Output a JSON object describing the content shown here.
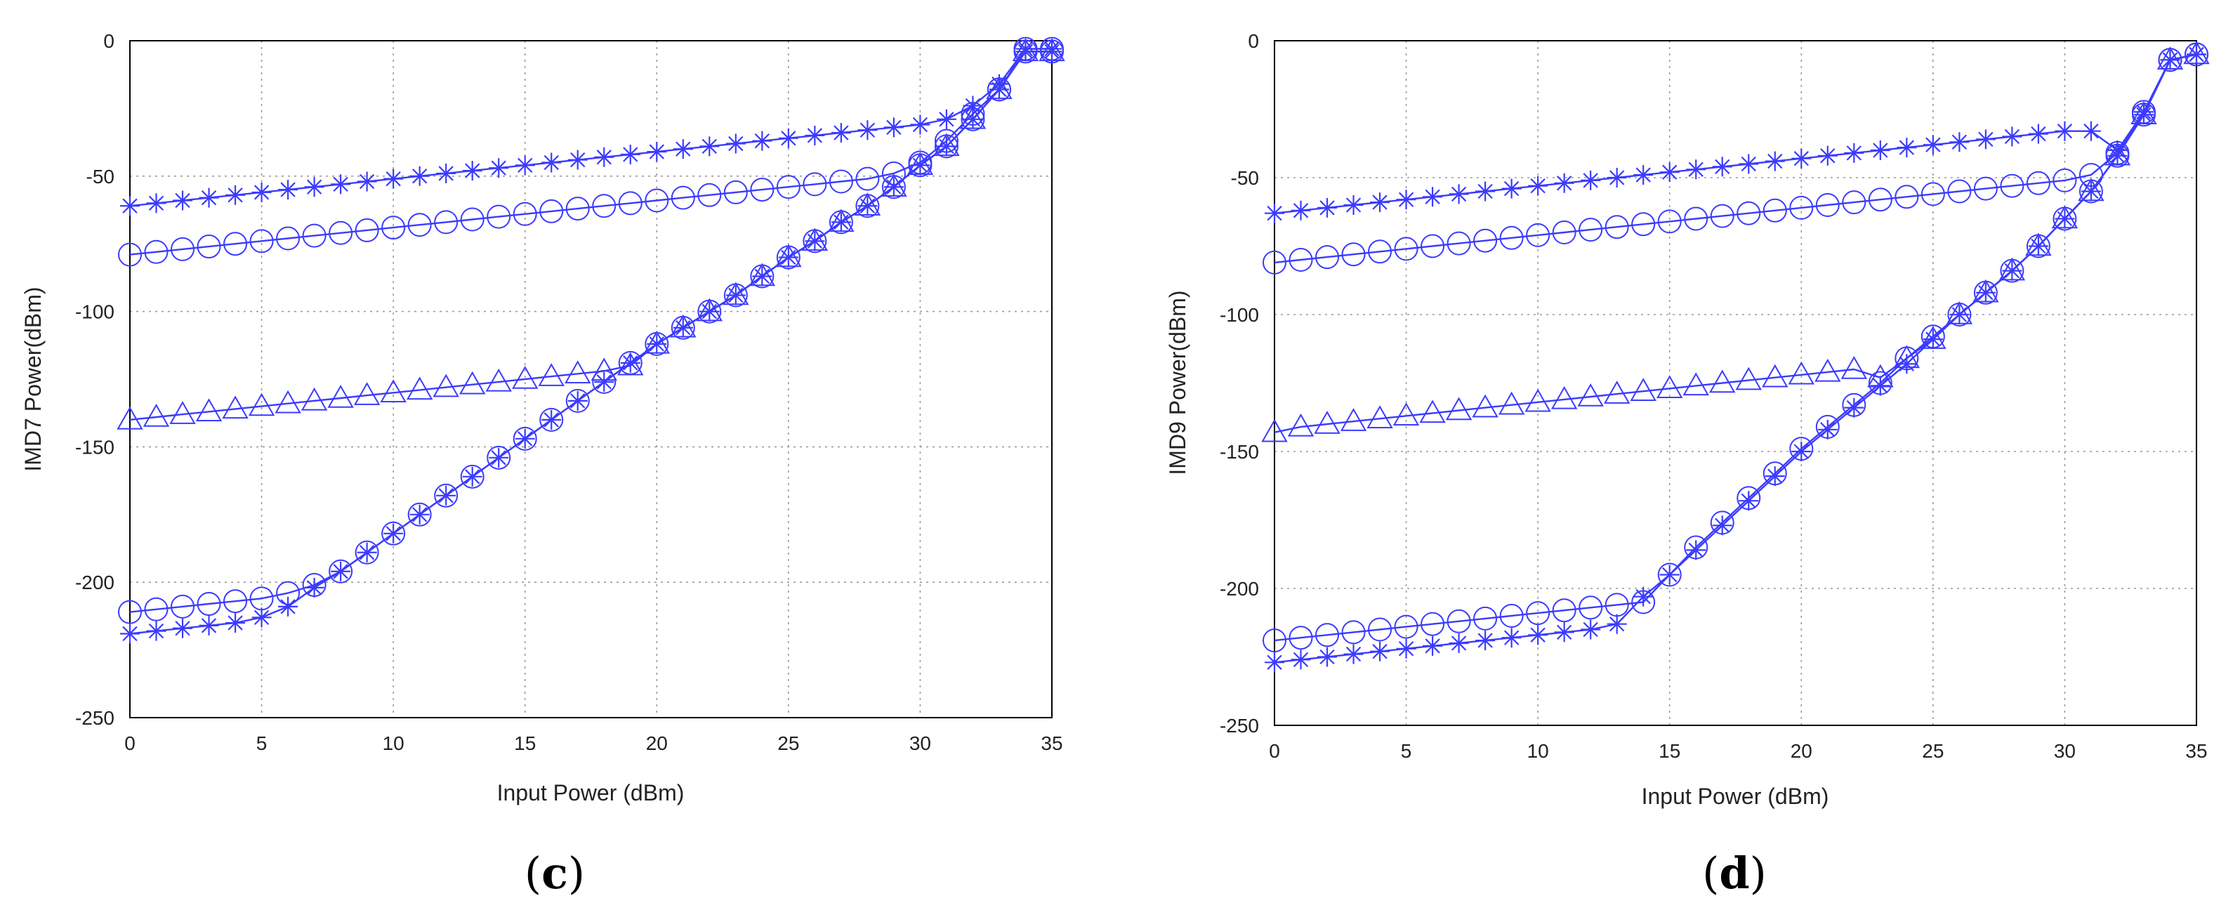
{
  "chart_data": [
    {
      "type": "line",
      "caption": {
        "open": "(",
        "letter": "c",
        "close": ")"
      },
      "xlabel": "Input Power (dBm)",
      "ylabel": "IMD7 Power(dBm)",
      "xlim": [
        0,
        35
      ],
      "ylim": [
        -250,
        0
      ],
      "xticks": [
        0,
        5,
        10,
        15,
        20,
        25,
        30,
        35
      ],
      "yticks": [
        0,
        -50,
        -100,
        -150,
        -200,
        -250
      ],
      "grid": true,
      "color": "#3b3bff",
      "series": [
        {
          "name": "star-upper",
          "marker": "star",
          "x": [
            0,
            1,
            2,
            3,
            4,
            5,
            6,
            7,
            8,
            9,
            10,
            11,
            12,
            13,
            14,
            15,
            16,
            17,
            18,
            19,
            20,
            21,
            22,
            23,
            24,
            25,
            26,
            27,
            28,
            29,
            30,
            31,
            32,
            33,
            34,
            35
          ],
          "y": [
            -61,
            -60,
            -59,
            -58,
            -57,
            -56,
            -55,
            -54,
            -53,
            -52,
            -51,
            -50,
            -49,
            -48,
            -47,
            -46,
            -45,
            -44,
            -43,
            -42,
            -41,
            -40,
            -39,
            -38,
            -37,
            -36,
            -35,
            -34,
            -33,
            -32,
            -31,
            -29,
            -24,
            -16,
            -3,
            -3
          ]
        },
        {
          "name": "circle-upper",
          "marker": "circle",
          "x": [
            0,
            1,
            2,
            3,
            4,
            5,
            6,
            7,
            8,
            9,
            10,
            11,
            12,
            13,
            14,
            15,
            16,
            17,
            18,
            19,
            20,
            21,
            22,
            23,
            24,
            25,
            26,
            27,
            28,
            29,
            30,
            31,
            32,
            33,
            34,
            35
          ],
          "y": [
            -79,
            -78,
            -77,
            -76,
            -75,
            -74,
            -73,
            -72,
            -71,
            -70,
            -69,
            -68,
            -67,
            -66,
            -65,
            -64,
            -63,
            -62,
            -61,
            -60,
            -59,
            -58,
            -57,
            -56,
            -55,
            -54,
            -53,
            -52,
            -51,
            -49,
            -45,
            -37,
            -27,
            -18,
            -3,
            -3
          ]
        },
        {
          "name": "triangle",
          "marker": "triangle",
          "x": [
            0,
            1,
            2,
            3,
            4,
            5,
            6,
            7,
            8,
            9,
            10,
            11,
            12,
            13,
            14,
            15,
            16,
            17,
            18,
            19,
            20,
            21,
            22,
            23,
            24,
            25,
            26,
            27,
            28,
            29,
            30,
            31,
            32,
            33,
            34,
            35
          ],
          "y": [
            -140,
            -139,
            -138,
            -137,
            -136,
            -135,
            -134,
            -133,
            -132,
            -131,
            -130,
            -129,
            -128,
            -127,
            -126,
            -125,
            -124,
            -123,
            -122,
            -120,
            -112,
            -106,
            -100,
            -94,
            -87,
            -80,
            -74,
            -67,
            -61,
            -54,
            -46,
            -39,
            -29,
            -18,
            -4,
            -4
          ]
        },
        {
          "name": "circle-lower",
          "marker": "circle",
          "x": [
            0,
            1,
            2,
            3,
            4,
            5,
            6,
            7,
            8,
            9,
            10,
            11,
            12,
            13,
            14,
            15,
            16,
            17,
            18,
            19,
            20,
            21,
            22,
            23,
            24,
            25,
            26,
            27,
            28,
            29,
            30,
            31,
            32,
            33,
            34,
            35
          ],
          "y": [
            -211,
            -210,
            -209,
            -208,
            -207,
            -206,
            -204,
            -201,
            -196,
            -189,
            -182,
            -175,
            -168,
            -161,
            -154,
            -147,
            -140,
            -133,
            -126,
            -119,
            -112,
            -106,
            -100,
            -94,
            -87,
            -80,
            -74,
            -67,
            -61,
            -54,
            -46,
            -39,
            -29,
            -18,
            -4,
            -4
          ]
        },
        {
          "name": "star-lower",
          "marker": "star",
          "x": [
            0,
            1,
            2,
            3,
            4,
            5,
            6,
            7,
            8,
            9,
            10,
            11,
            12,
            13,
            14,
            15,
            16,
            17,
            18,
            19,
            20,
            21,
            22,
            23,
            24,
            25,
            26,
            27,
            28,
            29,
            30,
            31,
            32,
            33,
            34,
            35
          ],
          "y": [
            -219,
            -218,
            -217,
            -216,
            -215,
            -213,
            -209,
            -202,
            -196,
            -189,
            -182,
            -175,
            -168,
            -161,
            -154,
            -147,
            -140,
            -133,
            -126,
            -119,
            -112,
            -106,
            -100,
            -94,
            -87,
            -80,
            -74,
            -67,
            -61,
            -54,
            -46,
            -39,
            -29,
            -18,
            -4,
            -4
          ]
        }
      ]
    },
    {
      "type": "line",
      "caption": {
        "open": "(",
        "letter": "d",
        "close": ")"
      },
      "xlabel": "Input Power (dBm)",
      "ylabel": "IMD9 Power(dBm)",
      "xlim": [
        0,
        35
      ],
      "ylim": [
        -250,
        0
      ],
      "xticks": [
        0,
        5,
        10,
        15,
        20,
        25,
        30,
        35
      ],
      "yticks": [
        0,
        -50,
        -100,
        -150,
        -200,
        -250
      ],
      "grid": true,
      "color": "#3b3bff",
      "series": [
        {
          "name": "star-upper",
          "marker": "star",
          "x": [
            0,
            1,
            2,
            3,
            4,
            5,
            6,
            7,
            8,
            9,
            10,
            11,
            12,
            13,
            14,
            15,
            16,
            17,
            18,
            19,
            20,
            21,
            22,
            23,
            24,
            25,
            26,
            27,
            28,
            29,
            30,
            31,
            32,
            33,
            34,
            35
          ],
          "y": [
            -63,
            -62,
            -61,
            -60,
            -59,
            -58,
            -57,
            -56,
            -55,
            -54,
            -53,
            -52,
            -51,
            -50,
            -49,
            -48,
            -47,
            -46,
            -45,
            -44,
            -43,
            -42,
            -41,
            -40,
            -39,
            -38,
            -37,
            -36,
            -35,
            -34,
            -33,
            -33,
            -40,
            -26,
            -7,
            -5
          ]
        },
        {
          "name": "circle-upper",
          "marker": "circle",
          "x": [
            0,
            1,
            2,
            3,
            4,
            5,
            6,
            7,
            8,
            9,
            10,
            11,
            12,
            13,
            14,
            15,
            16,
            17,
            18,
            19,
            20,
            21,
            22,
            23,
            24,
            25,
            26,
            27,
            28,
            29,
            30,
            31,
            32,
            33,
            34,
            35
          ],
          "y": [
            -81,
            -80,
            -79,
            -78,
            -77,
            -76,
            -75,
            -74,
            -73,
            -72,
            -71,
            -70,
            -69,
            -68,
            -67,
            -66,
            -65,
            -64,
            -63,
            -62,
            -61,
            -60,
            -59,
            -58,
            -57,
            -56,
            -55,
            -54,
            -53,
            -52,
            -51,
            -49,
            -41,
            -26,
            -7,
            -5
          ]
        },
        {
          "name": "triangle",
          "marker": "triangle",
          "x": [
            0,
            1,
            2,
            3,
            4,
            5,
            6,
            7,
            8,
            9,
            10,
            11,
            12,
            13,
            14,
            15,
            16,
            17,
            18,
            19,
            20,
            21,
            22,
            23,
            24,
            25,
            26,
            27,
            28,
            29,
            30,
            31,
            32,
            33,
            34,
            35
          ],
          "y": [
            -143,
            -141,
            -140,
            -139,
            -138,
            -137,
            -136,
            -135,
            -134,
            -133,
            -132,
            -131,
            -130,
            -129,
            -128,
            -127,
            -126,
            -125,
            -124,
            -123,
            -122,
            -121,
            -120,
            -123,
            -116,
            -109,
            -100,
            -92,
            -84,
            -75,
            -65,
            -55,
            -42,
            -27,
            -7,
            -5
          ]
        },
        {
          "name": "circle-lower",
          "marker": "circle",
          "x": [
            0,
            1,
            2,
            3,
            4,
            5,
            6,
            7,
            8,
            9,
            10,
            11,
            12,
            13,
            14,
            15,
            16,
            17,
            18,
            19,
            20,
            21,
            22,
            23,
            24,
            25,
            26,
            27,
            28,
            29,
            30,
            31,
            32,
            33,
            34,
            35
          ],
          "y": [
            -219,
            -218,
            -217,
            -216,
            -215,
            -214,
            -213,
            -212,
            -211,
            -210,
            -209,
            -208,
            -207,
            -206,
            -205,
            -195,
            -185,
            -176,
            -167,
            -158,
            -149,
            -141,
            -133,
            -125,
            -116,
            -108,
            -100,
            -92,
            -84,
            -75,
            -65,
            -55,
            -42,
            -27,
            -7,
            -5
          ]
        },
        {
          "name": "star-lower",
          "marker": "star",
          "x": [
            0,
            1,
            2,
            3,
            4,
            5,
            6,
            7,
            8,
            9,
            10,
            11,
            12,
            13,
            14,
            15,
            16,
            17,
            18,
            19,
            20,
            21,
            22,
            23,
            24,
            25,
            26,
            27,
            28,
            29,
            30,
            31,
            32,
            33,
            34,
            35
          ],
          "y": [
            -227,
            -226,
            -225,
            -224,
            -223,
            -222,
            -221,
            -220,
            -219,
            -218,
            -217,
            -216,
            -215,
            -213,
            -203,
            -195,
            -186,
            -177,
            -168,
            -159,
            -150,
            -142,
            -134,
            -126,
            -118,
            -109,
            -100,
            -92,
            -84,
            -75,
            -65,
            -55,
            -42,
            -27,
            -7,
            -5
          ]
        }
      ]
    }
  ]
}
